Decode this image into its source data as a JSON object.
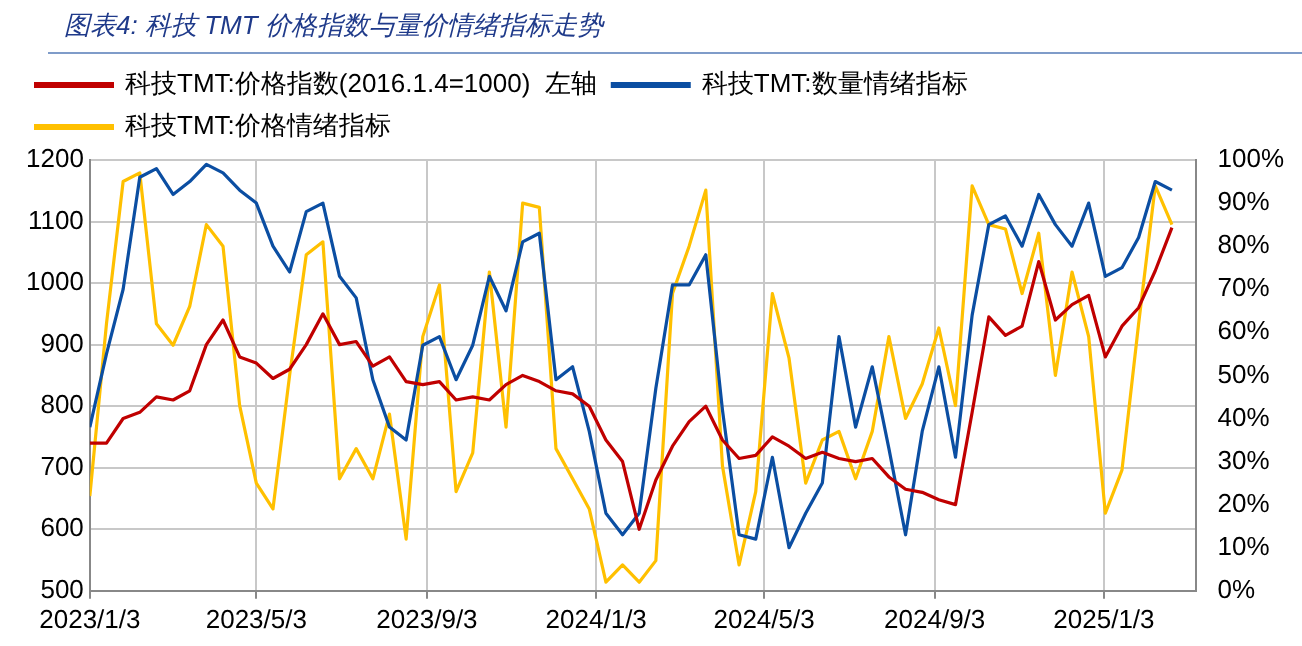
{
  "chart_data": {
    "type": "line",
    "title": "图表4:  科技 TMT 价格指数与量价情绪指标走势",
    "x": [
      "2023-01-03",
      "2023-01-15",
      "2023-01-27",
      "2023-02-08",
      "2023-02-20",
      "2023-03-04",
      "2023-03-16",
      "2023-03-28",
      "2023-04-09",
      "2023-04-21",
      "2023-05-03",
      "2023-05-15",
      "2023-05-27",
      "2023-06-08",
      "2023-06-20",
      "2023-07-02",
      "2023-07-14",
      "2023-07-26",
      "2023-08-07",
      "2023-08-19",
      "2023-08-31",
      "2023-09-12",
      "2023-09-24",
      "2023-10-06",
      "2023-10-18",
      "2023-10-30",
      "2023-11-11",
      "2023-11-23",
      "2023-12-05",
      "2023-12-17",
      "2023-12-29",
      "2024-01-10",
      "2024-01-22",
      "2024-02-03",
      "2024-02-15",
      "2024-02-27",
      "2024-03-10",
      "2024-03-22",
      "2024-04-03",
      "2024-04-15",
      "2024-04-27",
      "2024-05-09",
      "2024-05-21",
      "2024-06-02",
      "2024-06-14",
      "2024-06-26",
      "2024-07-08",
      "2024-07-20",
      "2024-08-01",
      "2024-08-13",
      "2024-08-25",
      "2024-09-06",
      "2024-09-18",
      "2024-09-30",
      "2024-10-12",
      "2024-10-24",
      "2024-11-05",
      "2024-11-17",
      "2024-11-29",
      "2024-12-11",
      "2024-12-23",
      "2025-01-04",
      "2025-01-16",
      "2025-01-28",
      "2025-02-09",
      "2025-02-21"
    ],
    "series": [
      {
        "name": "科技TMT:价格指数(2016.1.4=1000)  左轴",
        "color": "#c00000",
        "values": [
          740,
          740,
          780,
          790,
          815,
          810,
          825,
          900,
          940,
          880,
          870,
          845,
          860,
          900,
          950,
          900,
          905,
          865,
          880,
          840,
          835,
          840,
          810,
          815,
          810,
          835,
          850,
          840,
          825,
          820,
          800,
          745,
          710,
          600,
          680,
          735,
          775,
          800,
          745,
          715,
          720,
          750,
          735,
          715,
          725,
          715,
          710,
          715,
          685,
          665,
          660,
          648,
          640,
          790,
          945,
          915,
          930,
          1035,
          940,
          965,
          980,
          880,
          930,
          960,
          1020,
          1090
        ]
      },
      {
        "name": "科技TMT:数量情绪指标",
        "color": "#0b4ea2",
        "axis": "y2",
        "values": [
          38,
          55,
          70,
          96,
          98,
          92,
          95,
          99,
          97,
          93,
          90,
          80,
          74,
          88,
          90,
          73,
          68,
          49,
          38,
          35,
          57,
          59,
          49,
          57,
          73,
          65,
          81,
          83,
          49,
          52,
          37,
          18,
          13,
          18,
          47,
          71,
          71,
          78,
          42,
          13,
          12,
          31,
          10,
          18,
          25,
          59,
          38,
          52,
          33,
          13,
          37,
          52,
          31,
          64,
          85,
          87,
          80,
          92,
          85,
          80,
          90,
          73,
          75,
          82,
          95,
          93
        ]
      },
      {
        "name": "科技TMT:价格情绪指标",
        "color": "#ffc000",
        "axis": "y2",
        "values": [
          22,
          62,
          95,
          97,
          62,
          57,
          66,
          85,
          80,
          43,
          25,
          19,
          50,
          78,
          81,
          26,
          33,
          26,
          41,
          12,
          59,
          71,
          23,
          32,
          74,
          38,
          90,
          89,
          33,
          26,
          19,
          2,
          6,
          2,
          7,
          69,
          80,
          93,
          29,
          6,
          23,
          69,
          54,
          25,
          35,
          37,
          26,
          37,
          59,
          40,
          48,
          61,
          43,
          94,
          85,
          84,
          69,
          83,
          50,
          74,
          59,
          18,
          28,
          62,
          94,
          85
        ]
      }
    ],
    "xlim": [
      "2023-01-03",
      "2025-03-10"
    ],
    "xticks": [
      {
        "value": "2023-01-03",
        "label": "2023/1/3"
      },
      {
        "value": "2023-05-03",
        "label": "2023/5/3"
      },
      {
        "value": "2023-09-03",
        "label": "2023/9/3"
      },
      {
        "value": "2024-01-03",
        "label": "2024/1/3"
      },
      {
        "value": "2024-05-03",
        "label": "2024/5/3"
      },
      {
        "value": "2024-09-03",
        "label": "2024/9/3"
      },
      {
        "value": "2025-01-03",
        "label": "2025/1/3"
      }
    ],
    "ylim": [
      500,
      1200
    ],
    "yticks": [
      500,
      600,
      700,
      800,
      900,
      1000,
      1100,
      1200
    ],
    "y2lim": [
      0,
      100
    ],
    "y2ticks": [
      {
        "value": 0,
        "label": "0%"
      },
      {
        "value": 10,
        "label": "10%"
      },
      {
        "value": 20,
        "label": "20%"
      },
      {
        "value": 30,
        "label": "30%"
      },
      {
        "value": 40,
        "label": "40%"
      },
      {
        "value": 50,
        "label": "50%"
      },
      {
        "value": 60,
        "label": "60%"
      },
      {
        "value": 70,
        "label": "70%"
      },
      {
        "value": 80,
        "label": "80%"
      },
      {
        "value": 90,
        "label": "90%"
      },
      {
        "value": 100,
        "label": "100%"
      }
    ],
    "grid": true,
    "legend": "top",
    "marker": "none",
    "line_style": "solid"
  }
}
